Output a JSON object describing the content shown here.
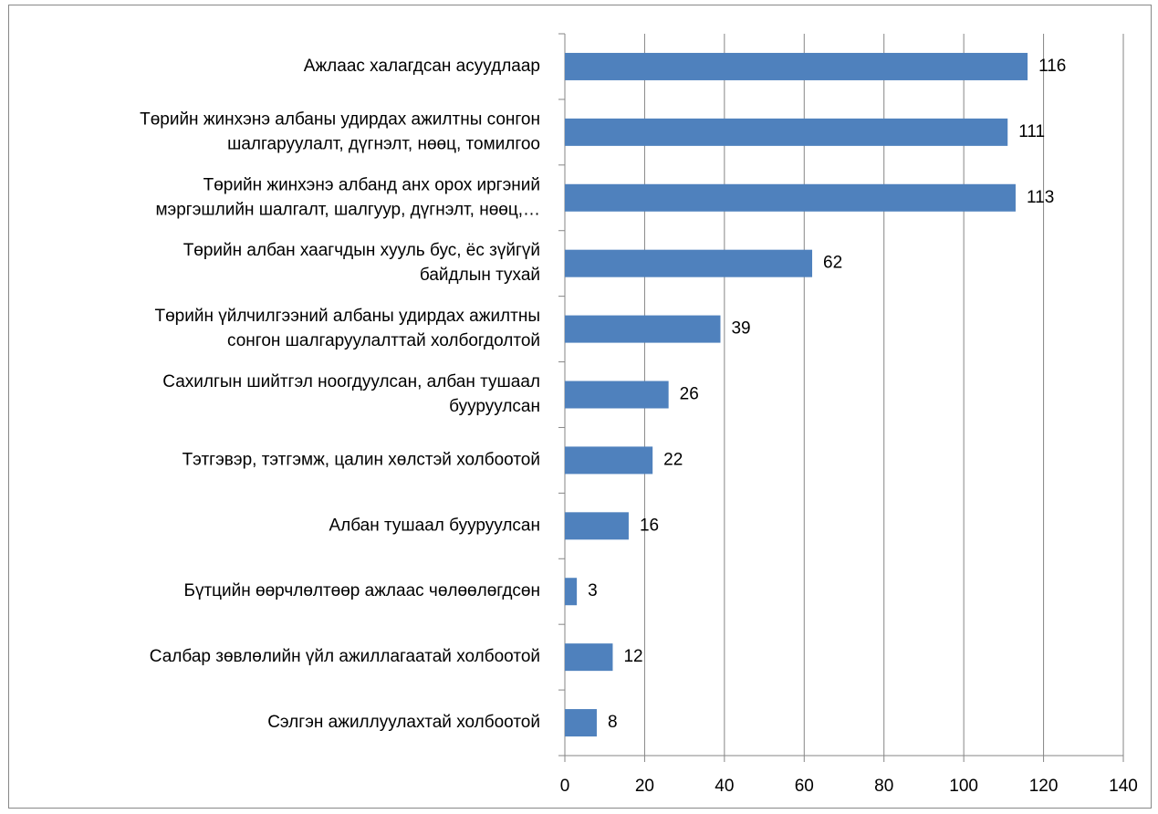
{
  "chart_data": {
    "type": "bar",
    "orientation": "horizontal",
    "categories": [
      "Ажлаас халагдсан асуудлаар",
      "Төрийн жинхэнэ албаны удирдах ажилтны сонгон\nшалгаруулалт, дүгнэлт, нөөц, томилгоо",
      "Төрийн жинхэнэ албанд анх орох иргэний\nмэргэшлийн шалгалт, шалгуур, дүгнэлт, нөөц,…",
      "Төрийн албан хаагчдын хууль бус, ёс зүйгүй\nбайдлын тухай",
      "Төрийн үйлчилгээний албаны удирдах ажилтны\nсонгон шалгаруулалттай холбогдолтой",
      "Сахилгын шийтгэл ноогдуулсан, албан тушаал\nбууруулсан",
      "Тэтгэвэр, тэтгэмж, цалин хөлстэй холбоотой",
      "Албан тушаал бууруулсан",
      "Бүтцийн өөрчлөлтөөр ажлаас чөлөөлөгдсөн",
      "Салбар зөвлөлийн үйл ажиллагаатай холбоотой",
      "Сэлгэн ажиллуулахтай холбоотой"
    ],
    "values": [
      116,
      111,
      113,
      62,
      39,
      26,
      22,
      16,
      3,
      12,
      8
    ],
    "color": "#4f81bd",
    "xlim": [
      0,
      140
    ],
    "xticks": [
      0,
      20,
      40,
      60,
      80,
      100,
      120,
      140
    ],
    "grid": true
  }
}
